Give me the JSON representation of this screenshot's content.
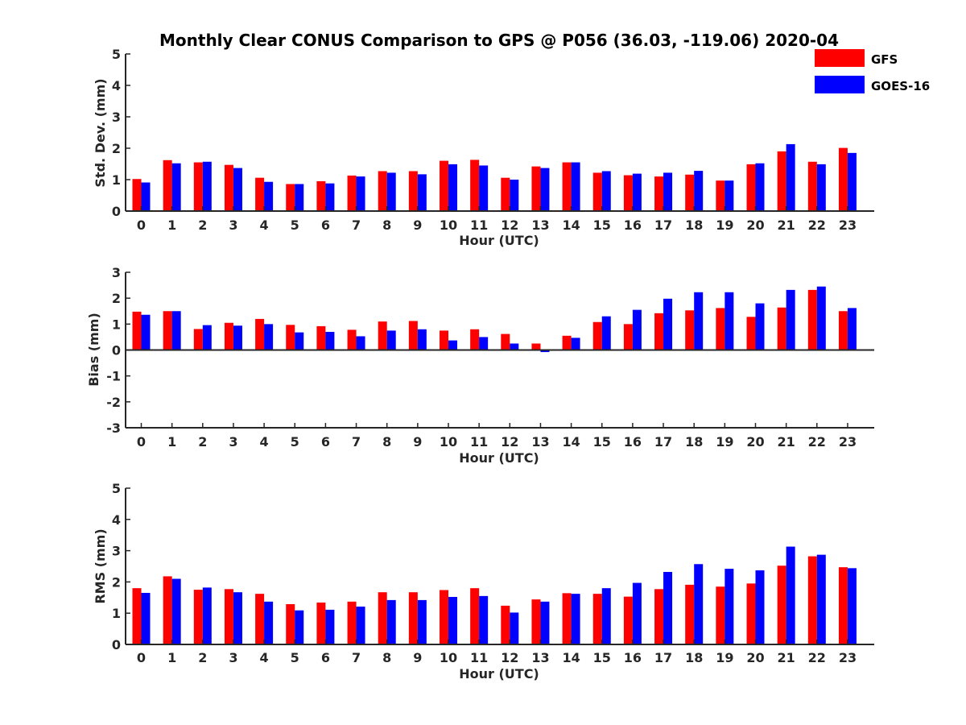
{
  "figure_title": "Monthly Clear CONUS Comparison to GPS @ P056 (36.03, -119.06) 2020-04",
  "legend": [
    {
      "name": "GFS",
      "color": "#ff0000"
    },
    {
      "name": "GOES-16",
      "color": "#0000ff"
    }
  ],
  "chart_data": [
    {
      "type": "bar",
      "categories": [
        "0",
        "1",
        "2",
        "3",
        "4",
        "5",
        "6",
        "7",
        "8",
        "9",
        "10",
        "11",
        "12",
        "13",
        "14",
        "15",
        "16",
        "17",
        "18",
        "19",
        "20",
        "21",
        "22",
        "23"
      ],
      "series": [
        {
          "name": "GFS",
          "color": "#ff0000",
          "values": [
            1.02,
            1.62,
            1.55,
            1.47,
            1.06,
            0.86,
            0.95,
            1.13,
            1.27,
            1.27,
            1.6,
            1.63,
            1.06,
            1.42,
            1.55,
            1.22,
            1.14,
            1.1,
            1.16,
            0.97,
            1.49,
            1.9,
            1.57,
            2.01
          ]
        },
        {
          "name": "GOES-16",
          "color": "#0000ff",
          "values": [
            0.91,
            1.52,
            1.57,
            1.37,
            0.93,
            0.86,
            0.88,
            1.1,
            1.22,
            1.17,
            1.49,
            1.45,
            1.0,
            1.37,
            1.55,
            1.27,
            1.19,
            1.22,
            1.28,
            0.97,
            1.52,
            2.13,
            1.49,
            1.85
          ]
        }
      ],
      "xlabel": "Hour (UTC)",
      "ylabel": "Std. Dev. (mm)",
      "ylim": [
        0,
        5
      ],
      "yticks": [
        "0",
        "1",
        "2",
        "3",
        "4",
        "5"
      ],
      "grid": false,
      "legend_position": "top-right"
    },
    {
      "type": "bar",
      "categories": [
        "0",
        "1",
        "2",
        "3",
        "4",
        "5",
        "6",
        "7",
        "8",
        "9",
        "10",
        "11",
        "12",
        "13",
        "14",
        "15",
        "16",
        "17",
        "18",
        "19",
        "20",
        "21",
        "22",
        "23"
      ],
      "series": [
        {
          "name": "GFS",
          "color": "#ff0000",
          "values": [
            1.48,
            1.5,
            0.81,
            1.05,
            1.2,
            0.97,
            0.92,
            0.78,
            1.1,
            1.12,
            0.75,
            0.8,
            0.62,
            0.25,
            0.55,
            1.08,
            1.0,
            1.42,
            1.53,
            1.62,
            1.28,
            1.64,
            2.32,
            1.5
          ]
        },
        {
          "name": "GOES-16",
          "color": "#0000ff",
          "values": [
            1.36,
            1.5,
            0.96,
            0.94,
            1.0,
            0.68,
            0.7,
            0.53,
            0.75,
            0.8,
            0.37,
            0.5,
            0.25,
            -0.08,
            0.47,
            1.3,
            1.55,
            1.98,
            2.23,
            2.23,
            1.8,
            2.32,
            2.45,
            1.62
          ]
        }
      ],
      "xlabel": "Hour (UTC)",
      "ylabel": "Bias (mm)",
      "ylim": [
        -3,
        3
      ],
      "yticks": [
        "-3",
        "-2",
        "-1",
        "0",
        "1",
        "2",
        "3"
      ],
      "grid": false
    },
    {
      "type": "bar",
      "categories": [
        "0",
        "1",
        "2",
        "3",
        "4",
        "5",
        "6",
        "7",
        "8",
        "9",
        "10",
        "11",
        "12",
        "13",
        "14",
        "15",
        "16",
        "17",
        "18",
        "19",
        "20",
        "21",
        "22",
        "23"
      ],
      "series": [
        {
          "name": "GFS",
          "color": "#ff0000",
          "values": [
            1.8,
            2.18,
            1.75,
            1.77,
            1.62,
            1.29,
            1.34,
            1.37,
            1.67,
            1.67,
            1.74,
            1.8,
            1.24,
            1.44,
            1.64,
            1.62,
            1.53,
            1.77,
            1.91,
            1.85,
            1.95,
            2.52,
            2.82,
            2.47
          ]
        },
        {
          "name": "GOES-16",
          "color": "#0000ff",
          "values": [
            1.65,
            2.1,
            1.82,
            1.67,
            1.37,
            1.09,
            1.11,
            1.21,
            1.42,
            1.42,
            1.52,
            1.55,
            1.02,
            1.37,
            1.62,
            1.8,
            1.97,
            2.32,
            2.57,
            2.42,
            2.37,
            3.13,
            2.87,
            2.44
          ]
        }
      ],
      "xlabel": "Hour (UTC)",
      "ylabel": "RMS (mm)",
      "ylim": [
        0,
        5
      ],
      "yticks": [
        "0",
        "1",
        "2",
        "3",
        "4",
        "5"
      ],
      "grid": false
    }
  ]
}
